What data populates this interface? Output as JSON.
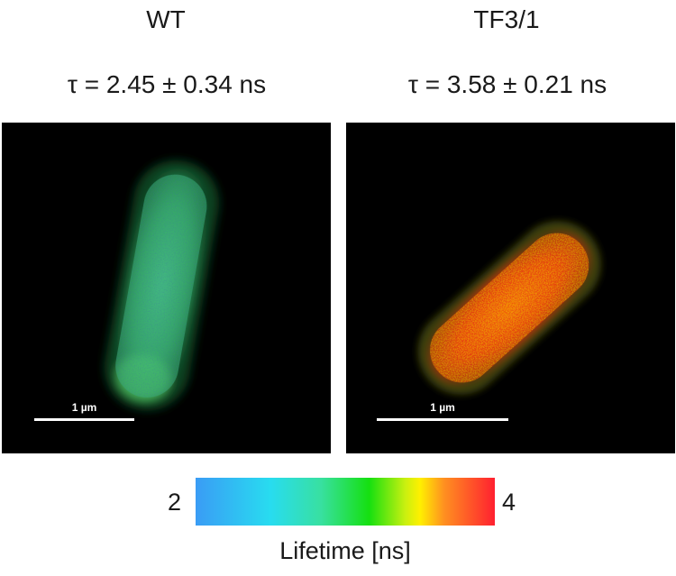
{
  "panels": [
    {
      "title": "WT",
      "lifetime": "τ = 2.45 ± 0.34 ns",
      "scalebar": "1 µm"
    },
    {
      "title": "TF3/1",
      "lifetime": "τ = 3.58 ± 0.21 ns",
      "scalebar": "1 µm"
    }
  ],
  "colorbar": {
    "min": "2",
    "max": "4",
    "label": "Lifetime [ns]",
    "colors": [
      "#3a9cf5",
      "#28dcf0",
      "#15e010",
      "#fff000",
      "#ff2030"
    ]
  }
}
